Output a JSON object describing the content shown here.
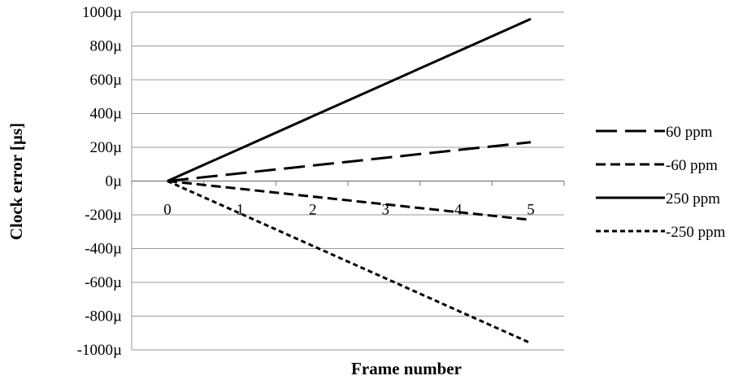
{
  "chart_data": {
    "type": "line",
    "title": "",
    "xlabel": "Frame number",
    "ylabel": "Clock error [µs]",
    "x": [
      0,
      1,
      2,
      3,
      4,
      5
    ],
    "x_tick_labels": [
      "0",
      "1",
      "2",
      "3",
      "4",
      "5"
    ],
    "ylim": [
      -1000,
      1000
    ],
    "y_ticks": [
      1000,
      800,
      600,
      400,
      200,
      0,
      -200,
      -400,
      -600,
      -800,
      -1000
    ],
    "y_tick_labels": [
      "1000µ",
      "800µ",
      "600µ",
      "400µ",
      "200µ",
      "0µ",
      "-200µ",
      "-400µ",
      "-600µ",
      "-800µ",
      "-1000µ"
    ],
    "grid": true,
    "legend_position": "right",
    "series": [
      {
        "name": "60 ppm",
        "values": [
          0,
          46,
          92,
          138,
          184,
          230
        ],
        "color": "#000000",
        "dash": "long-dash"
      },
      {
        "name": "-60 ppm",
        "values": [
          0,
          -46,
          -92,
          -138,
          -184,
          -230
        ],
        "color": "#000000",
        "dash": "dash"
      },
      {
        "name": "250 ppm",
        "values": [
          0,
          192,
          384,
          576,
          768,
          960
        ],
        "color": "#000000",
        "dash": "solid"
      },
      {
        "name": "-250 ppm",
        "values": [
          0,
          -192,
          -384,
          -576,
          -768,
          -960
        ],
        "color": "#000000",
        "dash": "short-dash"
      }
    ]
  }
}
